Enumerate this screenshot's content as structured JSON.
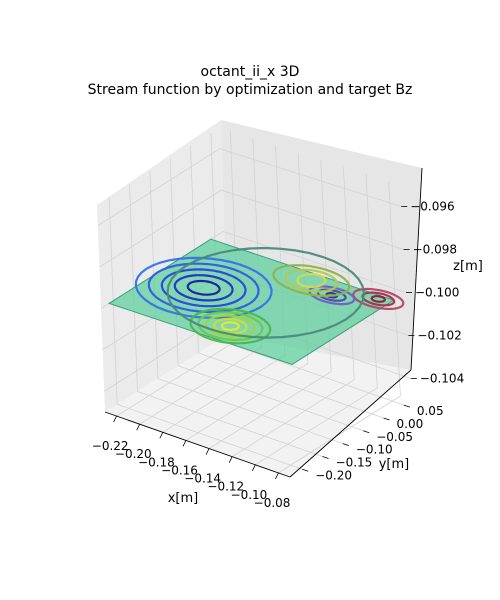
{
  "figure": {
    "title_line1": "octant_ii_x 3D",
    "title_line2": "Stream function by optimization and target Bz"
  },
  "chart_data": {
    "type": "3d-surface-contour",
    "title": "octant_ii_x 3D\nStream function by optimization and target Bz",
    "xlabel": "x[m]",
    "ylabel": "y[m]",
    "zlabel": "z[m]",
    "x_ticks": [
      "−0.22",
      "−0.20",
      "−0.18",
      "−0.16",
      "−0.14",
      "−0.12",
      "−0.10",
      "−0.08"
    ],
    "y_ticks": [
      "0.05",
      "0.00",
      "−0.05",
      "−0.10",
      "−0.15",
      "−0.20"
    ],
    "z_ticks": [
      "−0.096",
      "−0.098",
      "−0.100",
      "−0.102",
      "−0.104"
    ],
    "xlim": [
      -0.23,
      -0.07
    ],
    "ylim": [
      -0.23,
      0.07
    ],
    "zlim": [
      -0.105,
      -0.095
    ],
    "grid": true,
    "surface": {
      "z": -0.1,
      "x_range": [
        -0.23,
        -0.07
      ],
      "y_range": [
        -0.21,
        0.04
      ],
      "fill_color": "#5ccf9c"
    },
    "contour_groups": [
      {
        "name": "stream-min",
        "center": [
          -0.19,
          -0.09
        ],
        "rx": [
          0.012,
          0.05
        ],
        "ry": [
          0.02,
          0.09
        ],
        "colors": [
          "#1a1aa0",
          "#1f2fc8",
          "#2646dc",
          "#2d5ce6",
          "#3572ea"
        ]
      },
      {
        "name": "stream-max",
        "center": [
          -0.14,
          -0.165
        ],
        "rx": [
          0.006,
          0.03
        ],
        "ry": [
          0.012,
          0.05
        ],
        "colors": [
          "#e6ea2a",
          "#c8e030",
          "#9cd83a",
          "#6fc844",
          "#4ab84a"
        ]
      },
      {
        "name": "target-high",
        "center": [
          -0.08,
          0.03
        ],
        "rx": [
          0.005,
          0.02
        ],
        "ry": [
          0.008,
          0.025
        ],
        "colors": [
          "#8c1e3c",
          "#a03050",
          "#b44466"
        ]
      },
      {
        "name": "target-low",
        "center": [
          -0.11,
          0.0
        ],
        "rx": [
          0.004,
          0.018
        ],
        "ry": [
          0.006,
          0.022
        ],
        "colors": [
          "#3a2e8c",
          "#5046a6",
          "#6a62c0"
        ]
      },
      {
        "name": "target-mid",
        "center": [
          -0.135,
          0.02
        ],
        "rx": [
          0.01,
          0.03
        ],
        "ry": [
          0.02,
          0.04
        ],
        "colors": [
          "#d8d84a",
          "#b6c84a",
          "#8cb44a"
        ]
      },
      {
        "name": "outer",
        "center": [
          -0.15,
          -0.05
        ],
        "rx": [
          0.07
        ],
        "ry": [
          0.14
        ],
        "colors": [
          "#4a8a7a"
        ]
      }
    ]
  }
}
